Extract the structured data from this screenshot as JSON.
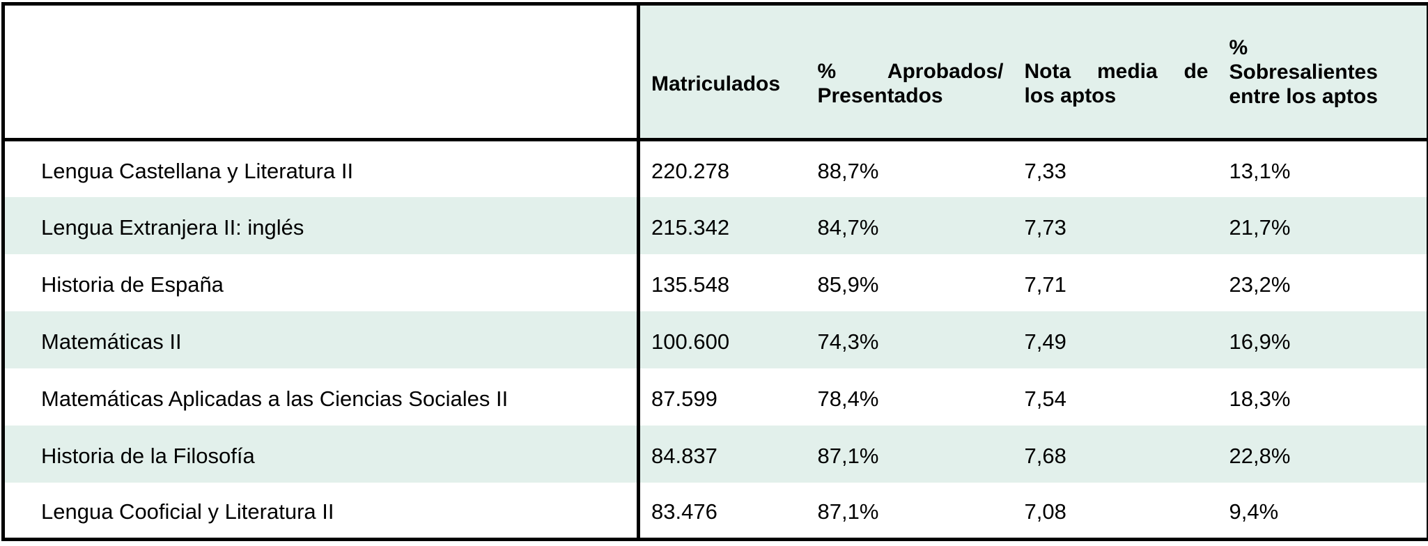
{
  "table": {
    "headers": {
      "matriculados": "Matriculados",
      "aprobados_line1": "% Aprobados/",
      "aprobados_line2": "Presentados",
      "nota_line1": "Nota media de",
      "nota_line2": "los aptos",
      "sobre_line1": "%",
      "sobre_line2": "Sobresalientes",
      "sobre_line3": "entre los aptos"
    },
    "rows": [
      {
        "subject": "Lengua Castellana y Literatura II",
        "matriculados": "220.278",
        "aprobados": "88,7%",
        "nota": "7,33",
        "sobresalientes": "13,1%"
      },
      {
        "subject": "Lengua Extranjera II: inglés",
        "matriculados": "215.342",
        "aprobados": "84,7%",
        "nota": "7,73",
        "sobresalientes": "21,7%"
      },
      {
        "subject": "Historia de España",
        "matriculados": "135.548",
        "aprobados": "85,9%",
        "nota": "7,71",
        "sobresalientes": "23,2%"
      },
      {
        "subject": "Matemáticas II",
        "matriculados": "100.600",
        "aprobados": "74,3%",
        "nota": "7,49",
        "sobresalientes": "16,9%"
      },
      {
        "subject": "Matemáticas Aplicadas a las Ciencias Sociales II",
        "matriculados": "87.599",
        "aprobados": "78,4%",
        "nota": "7,54",
        "sobresalientes": "18,3%"
      },
      {
        "subject": "Historia de la Filosofía",
        "matriculados": "84.837",
        "aprobados": "87,1%",
        "nota": "7,68",
        "sobresalientes": "22,8%"
      },
      {
        "subject": "Lengua Cooficial y Literatura II",
        "matriculados": "83.476",
        "aprobados": "87,1%",
        "nota": "7,08",
        "sobresalientes": "9,4%"
      }
    ]
  },
  "colors": {
    "header_bg": "#e2f0eb",
    "stripe_bg": "#e2f0eb",
    "border": "#000000"
  }
}
